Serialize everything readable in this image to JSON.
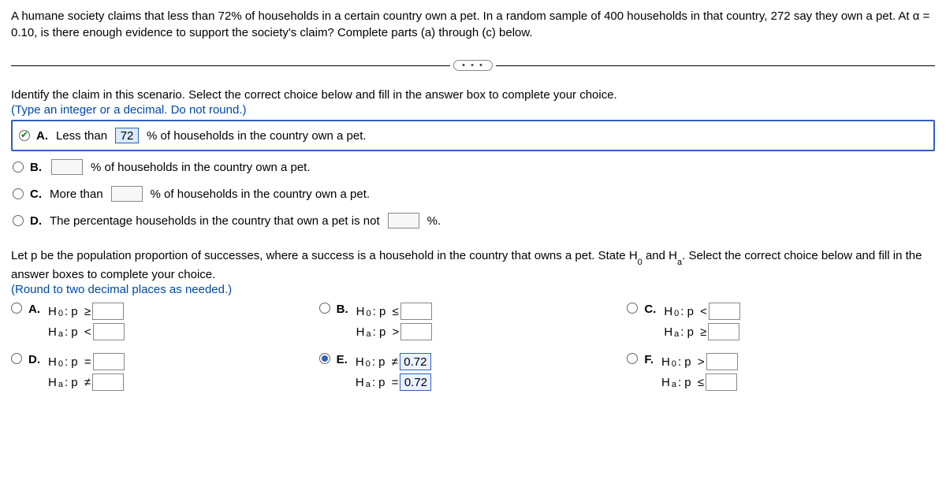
{
  "question": "A humane society claims that less than 72% of households in a certain country own a pet. In a random sample of 400 households in that country, 272 say they own a pet. At α = 0.10, is there enough evidence to support the society's claim? Complete parts (a) through (c) below.",
  "ellipsis": "• • •",
  "part1": {
    "prompt": "Identify the claim in this scenario. Select the correct choice below and fill in the answer box to complete your choice.",
    "instruction": "(Type an integer or a decimal. Do not round.)",
    "A": {
      "label": "A.",
      "pre": "Less than",
      "val": "72",
      "post": "% of households in the country own a pet."
    },
    "B": {
      "label": "B.",
      "post": "% of households in the country own a pet."
    },
    "C": {
      "label": "C.",
      "pre": "More than",
      "post": "% of households in the country own a pet."
    },
    "D": {
      "label": "D.",
      "pre": "The percentage households in the country that own a pet is not",
      "post": "%."
    }
  },
  "part2": {
    "prompt_a": "Let p be the population proportion of successes, where a success is a household in the country that owns a pet. State H",
    "prompt_b": " and H",
    "prompt_c": ". Select the correct choice below and fill in the answer boxes to complete your choice.",
    "sub0": "0",
    "suba": "a",
    "instruction": "(Round to two decimal places as needed.)",
    "H0": "H",
    "Ha": "H",
    "colon": ": p",
    "ge": "≥",
    "le": "≤",
    "lt": "<",
    "gt": ">",
    "eq": "=",
    "ne": "≠",
    "labels": {
      "A": "A.",
      "B": "B.",
      "C": "C.",
      "D": "D.",
      "E": "E.",
      "F": "F."
    },
    "E_h0_val": "0.72",
    "E_ha_val": "0.72"
  }
}
